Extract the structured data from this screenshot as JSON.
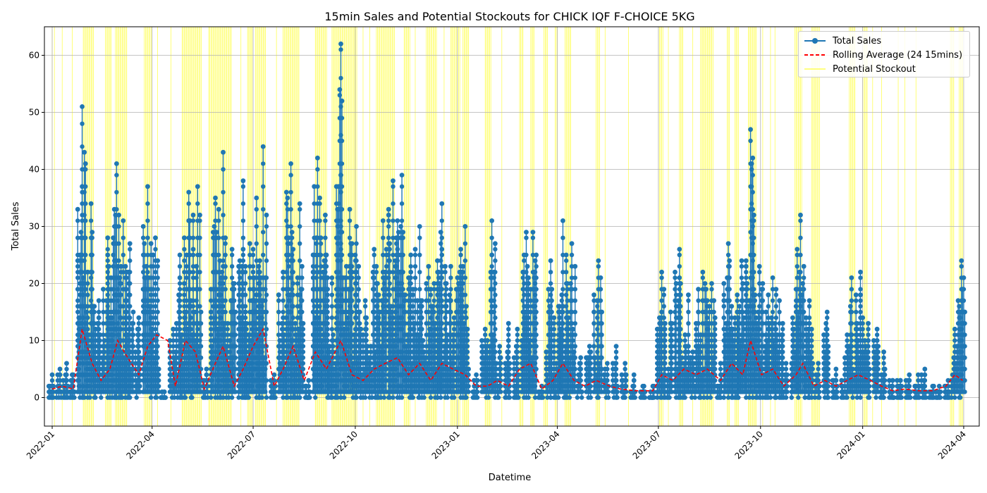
{
  "chart_data": {
    "type": "line",
    "title": "15min Sales and Potential Stockouts for CHICK IQF F-CHOICE 5KG",
    "xlabel": "Datetime",
    "ylabel": "Total Sales",
    "xlim": [
      "2021-12-25",
      "2024-04-15"
    ],
    "ylim": [
      -5,
      65
    ],
    "x_ticks": [
      "2022-01",
      "2022-04",
      "2022-07",
      "2022-10",
      "2023-01",
      "2023-04",
      "2023-07",
      "2023-10",
      "2024-01",
      "2024-04"
    ],
    "y_ticks": [
      0,
      10,
      20,
      30,
      40,
      50,
      60
    ],
    "grid": true,
    "legend_position": "upper-right",
    "series": [
      {
        "name": "Total Sales",
        "color": "#1f77b4",
        "marker": "circle",
        "style": "solid",
        "peaks": [
          {
            "x": "2022-01-01",
            "y": 4
          },
          {
            "x": "2022-01-08",
            "y": 5
          },
          {
            "x": "2022-01-14",
            "y": 6
          },
          {
            "x": "2022-01-20",
            "y": 4
          },
          {
            "x": "2022-01-28",
            "y": 51
          },
          {
            "x": "2022-02-05",
            "y": 34
          },
          {
            "x": "2022-02-12",
            "y": 17
          },
          {
            "x": "2022-02-20",
            "y": 28
          },
          {
            "x": "2022-02-28",
            "y": 41
          },
          {
            "x": "2022-03-06",
            "y": 31
          },
          {
            "x": "2022-03-12",
            "y": 27
          },
          {
            "x": "2022-03-20",
            "y": 14
          },
          {
            "x": "2022-03-28",
            "y": 37
          },
          {
            "x": "2022-04-04",
            "y": 28
          },
          {
            "x": "2022-04-12",
            "y": 1
          },
          {
            "x": "2022-04-20",
            "y": 12
          },
          {
            "x": "2022-04-26",
            "y": 25
          },
          {
            "x": "2022-05-04",
            "y": 36
          },
          {
            "x": "2022-05-12",
            "y": 37
          },
          {
            "x": "2022-05-20",
            "y": 5
          },
          {
            "x": "2022-05-28",
            "y": 35
          },
          {
            "x": "2022-06-04",
            "y": 43
          },
          {
            "x": "2022-06-12",
            "y": 26
          },
          {
            "x": "2022-06-22",
            "y": 38
          },
          {
            "x": "2022-06-28",
            "y": 27
          },
          {
            "x": "2022-07-04",
            "y": 35
          },
          {
            "x": "2022-07-10",
            "y": 44
          },
          {
            "x": "2022-07-20",
            "y": 4
          },
          {
            "x": "2022-07-28",
            "y": 22
          },
          {
            "x": "2022-08-04",
            "y": 41
          },
          {
            "x": "2022-08-12",
            "y": 34
          },
          {
            "x": "2022-08-20",
            "y": 3
          },
          {
            "x": "2022-08-28",
            "y": 42
          },
          {
            "x": "2022-09-04",
            "y": 32
          },
          {
            "x": "2022-09-10",
            "y": 21
          },
          {
            "x": "2022-09-18",
            "y": 62
          },
          {
            "x": "2022-09-26",
            "y": 33
          },
          {
            "x": "2022-10-02",
            "y": 30
          },
          {
            "x": "2022-10-10",
            "y": 17
          },
          {
            "x": "2022-10-18",
            "y": 26
          },
          {
            "x": "2022-10-26",
            "y": 31
          },
          {
            "x": "2022-11-04",
            "y": 38
          },
          {
            "x": "2022-11-12",
            "y": 39
          },
          {
            "x": "2022-11-20",
            "y": 25
          },
          {
            "x": "2022-11-28",
            "y": 30
          },
          {
            "x": "2022-12-06",
            "y": 23
          },
          {
            "x": "2022-12-14",
            "y": 24
          },
          {
            "x": "2022-12-18",
            "y": 34
          },
          {
            "x": "2022-12-26",
            "y": 23
          },
          {
            "x": "2023-01-04",
            "y": 26
          },
          {
            "x": "2023-01-08",
            "y": 30
          },
          {
            "x": "2023-01-18",
            "y": 4
          },
          {
            "x": "2023-01-26",
            "y": 12
          },
          {
            "x": "2023-02-01",
            "y": 31
          },
          {
            "x": "2023-02-08",
            "y": 9
          },
          {
            "x": "2023-02-16",
            "y": 13
          },
          {
            "x": "2023-02-24",
            "y": 12
          },
          {
            "x": "2023-03-04",
            "y": 29
          },
          {
            "x": "2023-03-10",
            "y": 29
          },
          {
            "x": "2023-03-18",
            "y": 2
          },
          {
            "x": "2023-03-26",
            "y": 24
          },
          {
            "x": "2023-04-02",
            "y": 16
          },
          {
            "x": "2023-04-06",
            "y": 31
          },
          {
            "x": "2023-04-14",
            "y": 27
          },
          {
            "x": "2023-04-22",
            "y": 7
          },
          {
            "x": "2023-04-30",
            "y": 9
          },
          {
            "x": "2023-05-08",
            "y": 24
          },
          {
            "x": "2023-05-16",
            "y": 6
          },
          {
            "x": "2023-05-24",
            "y": 9
          },
          {
            "x": "2023-06-01",
            "y": 6
          },
          {
            "x": "2023-06-09",
            "y": 4
          },
          {
            "x": "2023-06-18",
            "y": 2
          },
          {
            "x": "2023-06-26",
            "y": 2
          },
          {
            "x": "2023-07-04",
            "y": 22
          },
          {
            "x": "2023-07-12",
            "y": 15
          },
          {
            "x": "2023-07-20",
            "y": 26
          },
          {
            "x": "2023-07-28",
            "y": 18
          },
          {
            "x": "2023-08-04",
            "y": 13
          },
          {
            "x": "2023-08-10",
            "y": 22
          },
          {
            "x": "2023-08-18",
            "y": 20
          },
          {
            "x": "2023-08-26",
            "y": 6
          },
          {
            "x": "2023-09-02",
            "y": 27
          },
          {
            "x": "2023-09-10",
            "y": 18
          },
          {
            "x": "2023-09-14",
            "y": 24
          },
          {
            "x": "2023-09-22",
            "y": 47
          },
          {
            "x": "2023-09-30",
            "y": 23
          },
          {
            "x": "2023-10-06",
            "y": 15
          },
          {
            "x": "2023-10-12",
            "y": 21
          },
          {
            "x": "2023-10-18",
            "y": 17
          },
          {
            "x": "2023-10-24",
            "y": 6
          },
          {
            "x": "2023-11-02",
            "y": 16
          },
          {
            "x": "2023-11-06",
            "y": 32
          },
          {
            "x": "2023-11-14",
            "y": 17
          },
          {
            "x": "2023-11-22",
            "y": 6
          },
          {
            "x": "2023-11-30",
            "y": 15
          },
          {
            "x": "2023-12-08",
            "y": 5
          },
          {
            "x": "2023-12-16",
            "y": 7
          },
          {
            "x": "2023-12-22",
            "y": 21
          },
          {
            "x": "2023-12-30",
            "y": 22
          },
          {
            "x": "2024-01-06",
            "y": 13
          },
          {
            "x": "2024-01-14",
            "y": 12
          },
          {
            "x": "2024-01-20",
            "y": 8
          },
          {
            "x": "2024-01-28",
            "y": 3
          },
          {
            "x": "2024-02-04",
            "y": 3
          },
          {
            "x": "2024-02-12",
            "y": 4
          },
          {
            "x": "2024-02-20",
            "y": 4
          },
          {
            "x": "2024-02-26",
            "y": 5
          },
          {
            "x": "2024-03-04",
            "y": 2
          },
          {
            "x": "2024-03-10",
            "y": 2
          },
          {
            "x": "2024-03-18",
            "y": 3
          },
          {
            "x": "2024-03-24",
            "y": 12
          },
          {
            "x": "2024-03-30",
            "y": 24
          }
        ]
      },
      {
        "name": "Rolling Average (24 15mins)",
        "color": "#ff0000",
        "style": "dashed",
        "points": [
          {
            "x": "2022-01-01",
            "y": 1.5
          },
          {
            "x": "2022-01-10",
            "y": 2
          },
          {
            "x": "2022-01-20",
            "y": 1.5
          },
          {
            "x": "2022-01-28",
            "y": 12
          },
          {
            "x": "2022-02-06",
            "y": 6
          },
          {
            "x": "2022-02-14",
            "y": 3
          },
          {
            "x": "2022-02-22",
            "y": 5
          },
          {
            "x": "2022-03-01",
            "y": 10
          },
          {
            "x": "2022-03-10",
            "y": 7
          },
          {
            "x": "2022-03-20",
            "y": 4
          },
          {
            "x": "2022-03-28",
            "y": 9
          },
          {
            "x": "2022-04-05",
            "y": 11
          },
          {
            "x": "2022-04-15",
            "y": 10
          },
          {
            "x": "2022-04-22",
            "y": 2
          },
          {
            "x": "2022-05-01",
            "y": 10
          },
          {
            "x": "2022-05-10",
            "y": 8
          },
          {
            "x": "2022-05-18",
            "y": 1.5
          },
          {
            "x": "2022-05-28",
            "y": 6
          },
          {
            "x": "2022-06-04",
            "y": 9
          },
          {
            "x": "2022-06-14",
            "y": 2
          },
          {
            "x": "2022-06-22",
            "y": 5
          },
          {
            "x": "2022-07-01",
            "y": 9
          },
          {
            "x": "2022-07-10",
            "y": 12
          },
          {
            "x": "2022-07-20",
            "y": 2
          },
          {
            "x": "2022-07-28",
            "y": 5
          },
          {
            "x": "2022-08-06",
            "y": 9
          },
          {
            "x": "2022-08-16",
            "y": 3
          },
          {
            "x": "2022-08-26",
            "y": 8
          },
          {
            "x": "2022-09-05",
            "y": 5
          },
          {
            "x": "2022-09-18",
            "y": 10
          },
          {
            "x": "2022-09-28",
            "y": 4
          },
          {
            "x": "2022-10-08",
            "y": 3
          },
          {
            "x": "2022-10-18",
            "y": 5
          },
          {
            "x": "2022-10-28",
            "y": 6
          },
          {
            "x": "2022-11-08",
            "y": 7
          },
          {
            "x": "2022-11-18",
            "y": 4
          },
          {
            "x": "2022-11-28",
            "y": 6
          },
          {
            "x": "2022-12-08",
            "y": 3
          },
          {
            "x": "2022-12-18",
            "y": 6
          },
          {
            "x": "2022-12-28",
            "y": 5
          },
          {
            "x": "2023-01-08",
            "y": 4
          },
          {
            "x": "2023-01-18",
            "y": 2
          },
          {
            "x": "2023-01-28",
            "y": 2
          },
          {
            "x": "2023-02-06",
            "y": 3
          },
          {
            "x": "2023-02-16",
            "y": 2
          },
          {
            "x": "2023-02-26",
            "y": 5
          },
          {
            "x": "2023-03-08",
            "y": 6
          },
          {
            "x": "2023-03-18",
            "y": 1.5
          },
          {
            "x": "2023-03-28",
            "y": 3
          },
          {
            "x": "2023-04-06",
            "y": 6
          },
          {
            "x": "2023-04-16",
            "y": 3
          },
          {
            "x": "2023-04-26",
            "y": 2
          },
          {
            "x": "2023-05-06",
            "y": 3
          },
          {
            "x": "2023-05-18",
            "y": 2
          },
          {
            "x": "2023-05-28",
            "y": 1.5
          },
          {
            "x": "2023-06-10",
            "y": 1.2
          },
          {
            "x": "2023-06-26",
            "y": 1.2
          },
          {
            "x": "2023-07-04",
            "y": 4
          },
          {
            "x": "2023-07-14",
            "y": 3
          },
          {
            "x": "2023-07-24",
            "y": 5
          },
          {
            "x": "2023-08-04",
            "y": 4
          },
          {
            "x": "2023-08-14",
            "y": 5
          },
          {
            "x": "2023-08-26",
            "y": 3
          },
          {
            "x": "2023-09-05",
            "y": 6
          },
          {
            "x": "2023-09-15",
            "y": 4
          },
          {
            "x": "2023-09-22",
            "y": 10
          },
          {
            "x": "2023-10-02",
            "y": 4
          },
          {
            "x": "2023-10-12",
            "y": 5
          },
          {
            "x": "2023-10-22",
            "y": 2
          },
          {
            "x": "2023-11-02",
            "y": 4
          },
          {
            "x": "2023-11-08",
            "y": 6
          },
          {
            "x": "2023-11-18",
            "y": 2
          },
          {
            "x": "2023-11-28",
            "y": 3
          },
          {
            "x": "2023-12-08",
            "y": 2
          },
          {
            "x": "2023-12-18",
            "y": 3
          },
          {
            "x": "2023-12-28",
            "y": 4
          },
          {
            "x": "2024-01-08",
            "y": 3
          },
          {
            "x": "2024-01-18",
            "y": 2
          },
          {
            "x": "2024-01-28",
            "y": 1.2
          },
          {
            "x": "2024-02-08",
            "y": 1.5
          },
          {
            "x": "2024-02-20",
            "y": 1.2
          },
          {
            "x": "2024-03-04",
            "y": 1.2
          },
          {
            "x": "2024-03-16",
            "y": 2
          },
          {
            "x": "2024-03-24",
            "y": 4
          },
          {
            "x": "2024-03-31",
            "y": 3
          }
        ]
      },
      {
        "name": "Potential Stockout",
        "color": "#ffff00",
        "style": "vertical-lines",
        "events": [
          "2022-01-01",
          "2022-01-03",
          "2022-01-10",
          "2022-01-19",
          [
            "2022-01-29",
            "2022-02-08"
          ],
          [
            "2022-02-18",
            "2022-02-24"
          ],
          [
            "2022-02-27",
            "2022-03-10"
          ],
          [
            "2022-03-25",
            "2022-04-01"
          ],
          "2022-04-06",
          "2022-04-18",
          [
            "2022-04-28",
            "2022-05-16"
          ],
          [
            "2022-05-22",
            "2022-06-12"
          ],
          "2022-06-20",
          [
            "2022-06-26",
            "2022-07-01"
          ],
          [
            "2022-07-03",
            "2022-07-13"
          ],
          "2022-07-22",
          [
            "2022-07-28",
            "2022-08-12"
          ],
          [
            "2022-08-26",
            "2022-09-06"
          ],
          [
            "2022-09-10",
            "2022-10-03"
          ],
          "2022-10-08",
          "2022-10-14",
          [
            "2022-10-20",
            "2022-11-06"
          ],
          [
            "2022-11-14",
            "2022-11-20"
          ],
          "2022-11-24",
          [
            "2022-12-04",
            "2022-12-14"
          ],
          "2022-12-20",
          [
            "2022-12-26",
            "2023-01-04"
          ],
          [
            "2023-01-06",
            "2023-01-12"
          ],
          [
            "2023-01-26",
            "2023-02-01"
          ],
          "2023-02-10",
          [
            "2023-02-26",
            "2023-03-02"
          ],
          [
            "2023-03-08",
            "2023-03-12"
          ],
          [
            "2023-03-20",
            "2023-03-24"
          ],
          [
            "2023-03-30",
            "2023-04-02"
          ],
          [
            "2023-04-08",
            "2023-04-14"
          ],
          [
            "2023-05-06",
            "2023-05-10"
          ],
          "2023-05-14",
          "2023-06-04",
          [
            "2023-07-01",
            "2023-07-06"
          ],
          "2023-07-10",
          [
            "2023-07-20",
            "2023-07-24"
          ],
          "2023-08-01",
          [
            "2023-08-08",
            "2023-08-20"
          ],
          [
            "2023-09-01",
            "2023-09-04"
          ],
          [
            "2023-09-08",
            "2023-09-12"
          ],
          [
            "2023-09-20",
            "2023-09-28"
          ],
          "2023-10-03",
          "2023-10-10",
          "2023-10-14",
          [
            "2023-11-01",
            "2023-11-08"
          ],
          [
            "2023-11-16",
            "2023-11-24"
          ],
          [
            "2023-12-20",
            "2023-12-26"
          ],
          [
            "2024-01-01",
            "2024-01-06"
          ],
          "2024-01-10",
          "2024-01-18",
          "2024-02-02",
          "2024-02-08",
          "2024-02-18",
          [
            "2024-03-20",
            "2024-03-24"
          ],
          [
            "2024-03-28",
            "2024-04-01"
          ]
        ]
      }
    ]
  }
}
